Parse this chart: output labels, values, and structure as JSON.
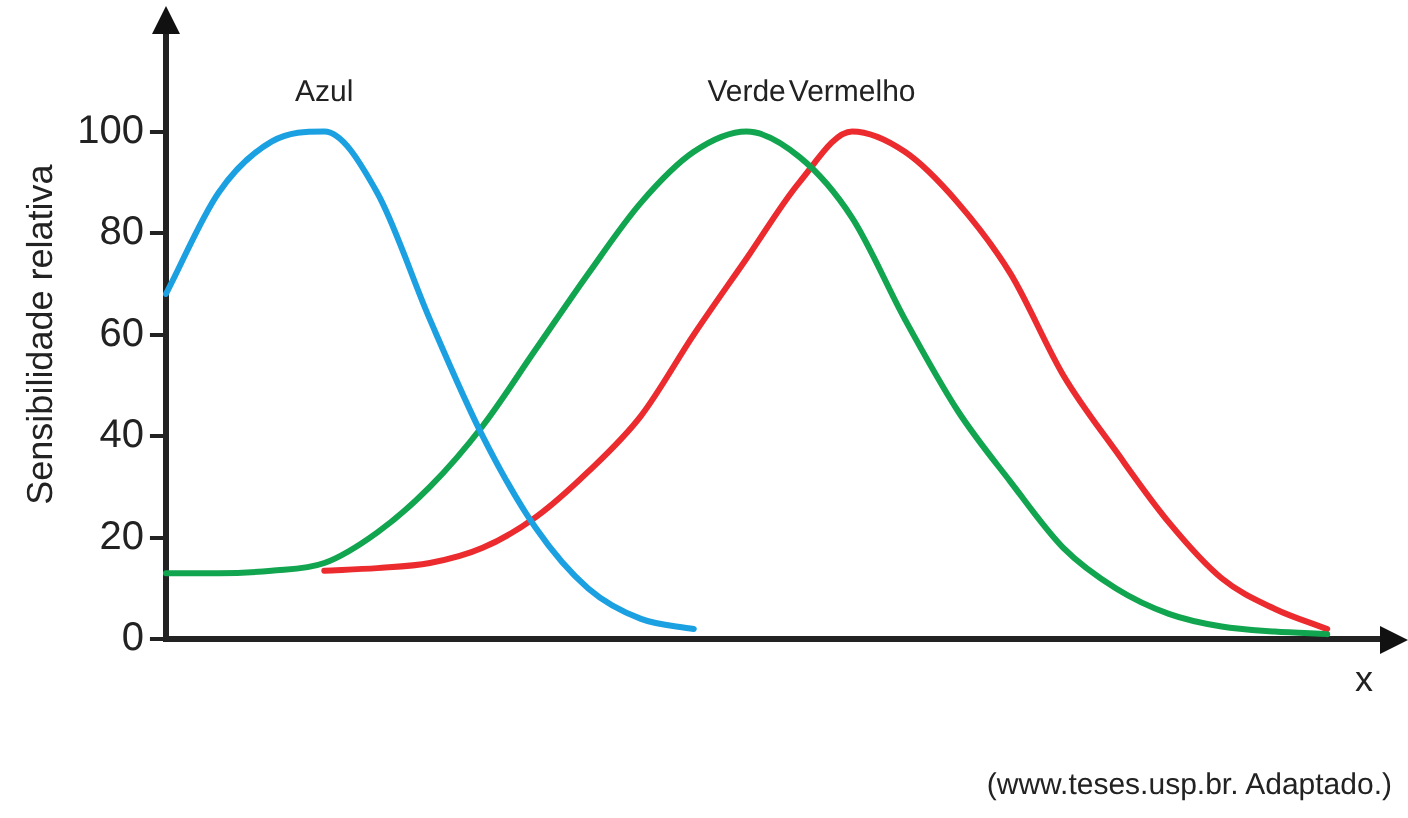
{
  "chart_data": {
    "type": "line",
    "ylabel": "Sensibilidade relativa",
    "xlabel": "x",
    "categories": [
      null,
      null,
      null,
      null,
      null,
      null,
      null,
      null,
      null,
      null,
      null,
      null,
      null,
      null,
      null,
      null,
      null,
      null,
      null,
      null,
      null,
      null,
      null,
      null
    ],
    "ylim": [
      0,
      120
    ],
    "yticks": [
      0,
      20,
      40,
      60,
      80,
      100
    ],
    "grid": false,
    "legend": false,
    "marker": "none",
    "line_style": "solid",
    "series": [
      {
        "name": "Azul",
        "color": "#1ba1e2",
        "values": [
          68,
          88,
          98,
          100,
          88,
          63,
          40,
          22,
          10,
          4,
          2,
          null,
          null,
          null,
          null,
          null,
          null,
          null,
          null,
          null,
          null,
          null,
          null,
          null
        ]
      },
      {
        "name": "Verde",
        "color": "#12a550",
        "values": [
          13,
          13,
          13.5,
          15,
          21,
          30,
          42,
          57,
          72,
          86,
          96,
          100,
          95,
          83,
          63,
          45,
          31,
          18,
          10,
          5,
          2.5,
          1.5,
          1,
          null
        ]
      },
      {
        "name": "Vermelho",
        "color": "#ec2b2f",
        "values": [
          null,
          null,
          null,
          13.5,
          14,
          15,
          18,
          24,
          33,
          44,
          60,
          75,
          90,
          100,
          96,
          86,
          72,
          52,
          37,
          23,
          12,
          6,
          2,
          null
        ]
      }
    ],
    "annotations": [
      "(www.teses.usp.br. Adaptado.)"
    ]
  }
}
